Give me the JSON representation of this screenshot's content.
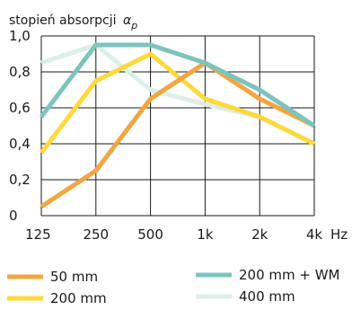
{
  "chart_data": {
    "type": "line",
    "title": "stopień absorpcji",
    "title_symbol": "α",
    "title_subscript": "p",
    "xunit": "Hz",
    "categories": [
      "125",
      "250",
      "500",
      "1k",
      "2k",
      "4k"
    ],
    "ylim": [
      0,
      1.0
    ],
    "yticks": [
      "0",
      "0,2",
      "0,4",
      "0,6",
      "0,8",
      "1,0"
    ],
    "grid": true,
    "legend_position": "bottom",
    "series": [
      {
        "name": "50 mm",
        "color": "#F2A541",
        "values": [
          0.05,
          0.25,
          0.65,
          0.85,
          0.65,
          0.5
        ]
      },
      {
        "name": "200 mm",
        "color": "#FFD83A",
        "values": [
          0.35,
          0.75,
          0.9,
          0.65,
          0.55,
          0.4
        ]
      },
      {
        "name": "200 mm + WM",
        "color": "#7CC4BE",
        "values": [
          0.55,
          0.95,
          0.95,
          0.85,
          0.7,
          0.5
        ]
      },
      {
        "name": "400 mm",
        "color": "#DDEEE7",
        "values": [
          0.85,
          0.95,
          0.7,
          0.62,
          0.55,
          0.4
        ]
      }
    ]
  }
}
